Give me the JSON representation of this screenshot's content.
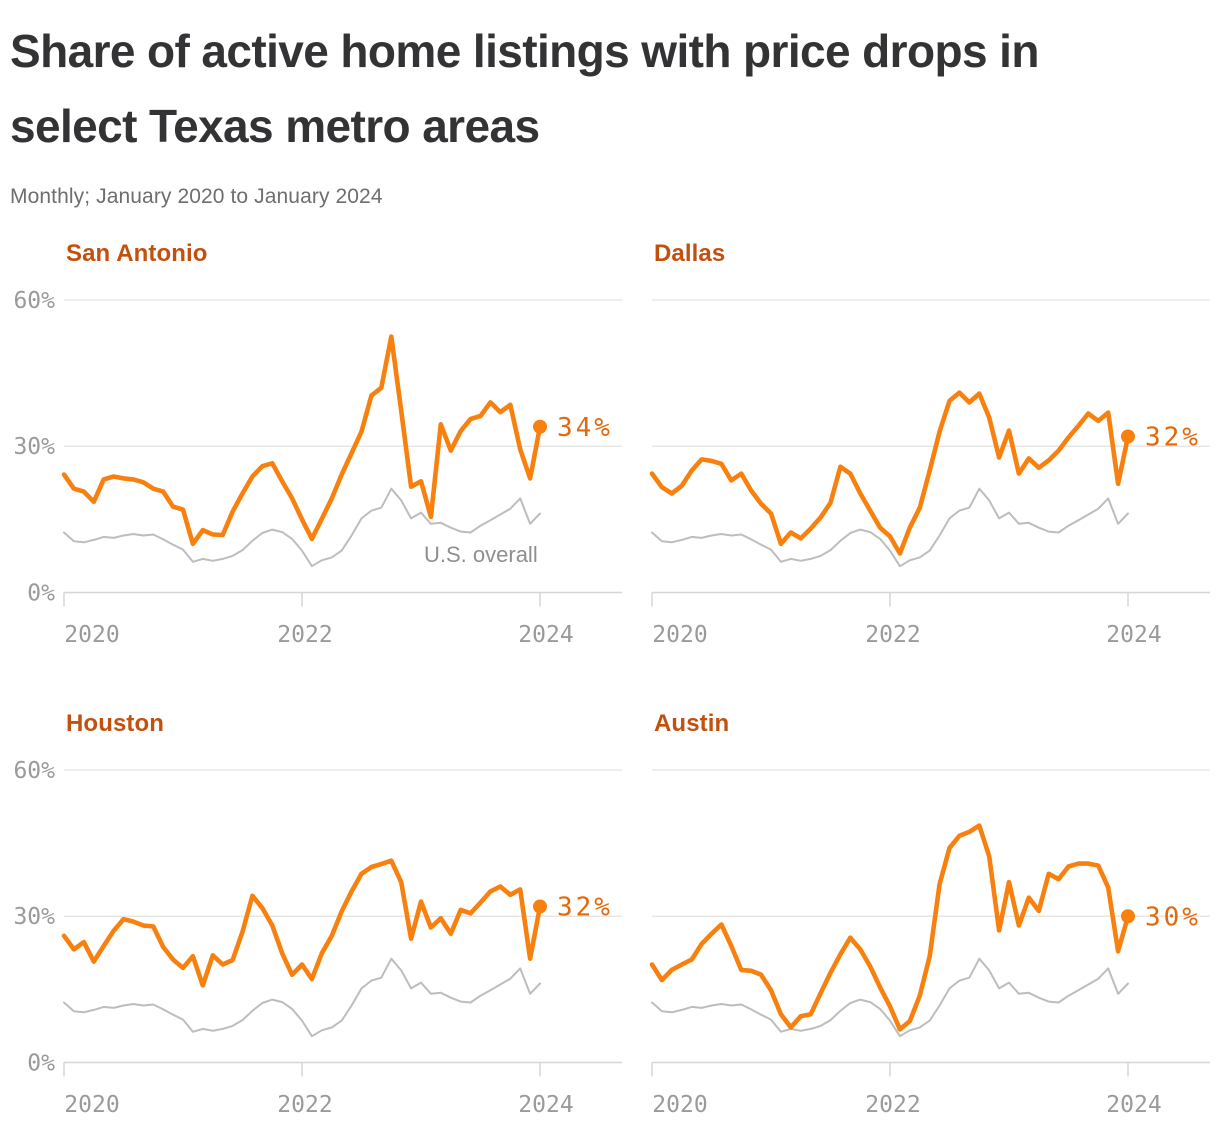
{
  "header": {
    "title_lines": [
      "Share of active home listings with price drops in",
      "select Texas metro areas"
    ],
    "subtitle": "Monthly; January 2020 to January 2024"
  },
  "colors": {
    "metro_line": "#F7800E",
    "metro_dot": "#F7800E",
    "end_label_text": "#E2690B",
    "panel_title": "#C2500F",
    "us_line": "#BDBDBD",
    "us_label": "#8F8F8F",
    "grid_line": "#E3E3E3",
    "axis_line": "#D6D6D6",
    "tick_text": "#9A9A9A",
    "main_title": "#333335",
    "subtitle_text": "#6E6E6E"
  },
  "chart_data": {
    "type": "line",
    "frequency": "monthly",
    "x_range": [
      "2020-01",
      "2024-01"
    ],
    "ylim": [
      0,
      60
    ],
    "grid": "horizontal",
    "y_tick_labels": [
      "60%",
      "30%",
      "0%"
    ],
    "y_tick_values": [
      60,
      30,
      0
    ],
    "x_tick_labels": [
      "2020",
      "2022",
      "2024"
    ],
    "x_tick_months": [
      0,
      24,
      48
    ],
    "us_overall_label": "U.S. overall",
    "us_overall": [
      12.3,
      10.5,
      10.3,
      10.8,
      11.4,
      11.2,
      11.7,
      12.0,
      11.7,
      11.9,
      10.9,
      9.8,
      8.8,
      6.3,
      6.9,
      6.5,
      6.9,
      7.5,
      8.7,
      10.6,
      12.2,
      12.9,
      12.4,
      11.0,
      8.6,
      5.4,
      6.6,
      7.2,
      8.6,
      11.7,
      15.2,
      16.8,
      17.4,
      21.3,
      18.9,
      15.2,
      16.4,
      14.1,
      14.3,
      13.3,
      12.5,
      12.3,
      13.7,
      14.8,
      16.0,
      17.2,
      19.3,
      14.1,
      16.2
    ],
    "panels": [
      {
        "title": "San Antonio",
        "end_label": "34%",
        "end_value": 34,
        "values": [
          24.2,
          21.3,
          20.7,
          18.6,
          23.2,
          23.8,
          23.4,
          23.2,
          22.6,
          21.3,
          20.7,
          17.6,
          17.0,
          10.0,
          12.8,
          11.9,
          11.8,
          16.6,
          20.3,
          23.8,
          25.9,
          26.5,
          22.8,
          19.3,
          15.0,
          11.0,
          15.1,
          19.3,
          24.2,
          28.6,
          33.0,
          40.4,
          42.0,
          52.5,
          37.3,
          21.7,
          22.8,
          15.5,
          34.5,
          29.1,
          33.1,
          35.6,
          36.2,
          39.0,
          37.0,
          38.5,
          29.4,
          23.4,
          34.0
        ]
      },
      {
        "title": "Dallas",
        "end_label": "32%",
        "end_value": 32,
        "values": [
          24.4,
          21.6,
          20.3,
          21.9,
          25.0,
          27.3,
          27.0,
          26.4,
          23.0,
          24.4,
          20.9,
          18.2,
          16.2,
          10.0,
          12.3,
          11.1,
          13.1,
          15.4,
          18.4,
          25.8,
          24.4,
          20.3,
          16.8,
          13.3,
          11.5,
          8.0,
          13.3,
          17.4,
          25.0,
          33.0,
          39.3,
          41.0,
          39.0,
          40.8,
          35.9,
          27.7,
          33.2,
          24.4,
          27.5,
          25.6,
          27.1,
          29.1,
          31.8,
          34.2,
          36.7,
          35.2,
          36.9,
          22.3,
          32.0
        ]
      },
      {
        "title": "Houston",
        "end_label": "32%",
        "end_value": 32,
        "values": [
          26.0,
          23.2,
          24.7,
          20.7,
          23.9,
          27.0,
          29.4,
          28.9,
          28.1,
          27.9,
          23.7,
          21.1,
          19.4,
          21.8,
          15.8,
          22.0,
          20.1,
          21.0,
          26.8,
          34.2,
          31.7,
          28.1,
          22.4,
          18.0,
          20.1,
          17.1,
          22.4,
          26.0,
          31.0,
          35.1,
          38.7,
          40.1,
          40.7,
          41.4,
          37.0,
          25.4,
          33.0,
          27.7,
          29.6,
          26.4,
          31.3,
          30.6,
          32.8,
          35.1,
          36.1,
          34.4,
          35.5,
          21.3,
          32.0
        ]
      },
      {
        "title": "Austin",
        "end_label": "30%",
        "end_value": 30,
        "values": [
          20.1,
          16.9,
          19.0,
          20.1,
          21.1,
          24.3,
          26.4,
          28.3,
          23.9,
          19.0,
          18.8,
          18.0,
          14.8,
          9.9,
          7.2,
          9.5,
          9.9,
          14.2,
          18.4,
          22.2,
          25.6,
          23.2,
          19.7,
          15.4,
          11.5,
          6.8,
          8.5,
          13.7,
          21.8,
          36.6,
          44.0,
          46.5,
          47.3,
          48.6,
          42.3,
          27.1,
          37.0,
          28.1,
          33.8,
          31.1,
          38.7,
          37.6,
          40.2,
          40.8,
          40.8,
          40.4,
          35.9,
          22.8,
          30.0
        ]
      }
    ]
  }
}
